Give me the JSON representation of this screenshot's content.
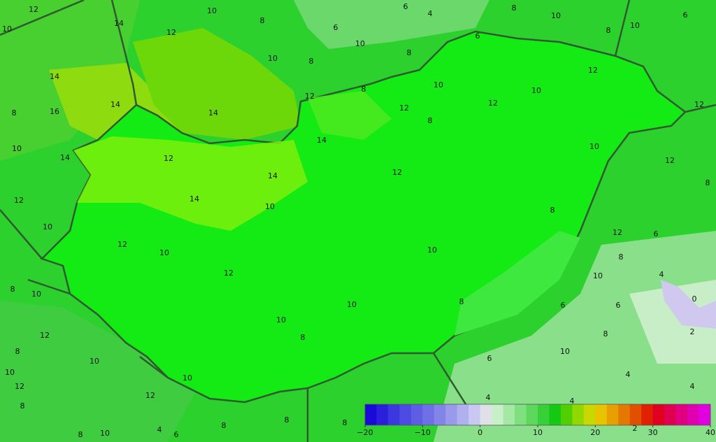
{
  "contour_labels": [
    12,
    10,
    14,
    12,
    10,
    8,
    6,
    6,
    4,
    8,
    10,
    10,
    6,
    10,
    8,
    8,
    10,
    6,
    8,
    14,
    8,
    16,
    14,
    14,
    12,
    8,
    10,
    10,
    12,
    12,
    12,
    8,
    12,
    10,
    14,
    12,
    14,
    14,
    12,
    10,
    12,
    8,
    12,
    14,
    10,
    8,
    10,
    12,
    10,
    10,
    12,
    6,
    8,
    12,
    10,
    4,
    8,
    10,
    10,
    8,
    6,
    6,
    0,
    10,
    8,
    12,
    8,
    2,
    8,
    10,
    10,
    6,
    10,
    10,
    12,
    4,
    12,
    4,
    4,
    4,
    8,
    8,
    8,
    8,
    4,
    10,
    6,
    8,
    2
  ],
  "colorbar": {
    "range": [
      -20,
      40
    ],
    "colors": [
      "#1a0ad8",
      "#2a20dc",
      "#3c38e0",
      "#4c4ce2",
      "#5e5ee4",
      "#7070e6",
      "#8484e8",
      "#9a9aea",
      "#b0b0ee",
      "#c8c8f2",
      "#e0e0e8",
      "#c8f0c8",
      "#a4e8a4",
      "#80e080",
      "#5cd85c",
      "#38d038",
      "#14c814",
      "#50d000",
      "#90d800",
      "#c8d800",
      "#e8c400",
      "#e8a000",
      "#e47800",
      "#e05000",
      "#e02000",
      "#e00020",
      "#e00050",
      "#e00080",
      "#e000b0",
      "#e000e0"
    ],
    "ticks": [
      {
        "value": -20,
        "label": "−20"
      },
      {
        "value": -10,
        "label": "−10"
      },
      0,
      10,
      20,
      30,
      40
    ]
  }
}
